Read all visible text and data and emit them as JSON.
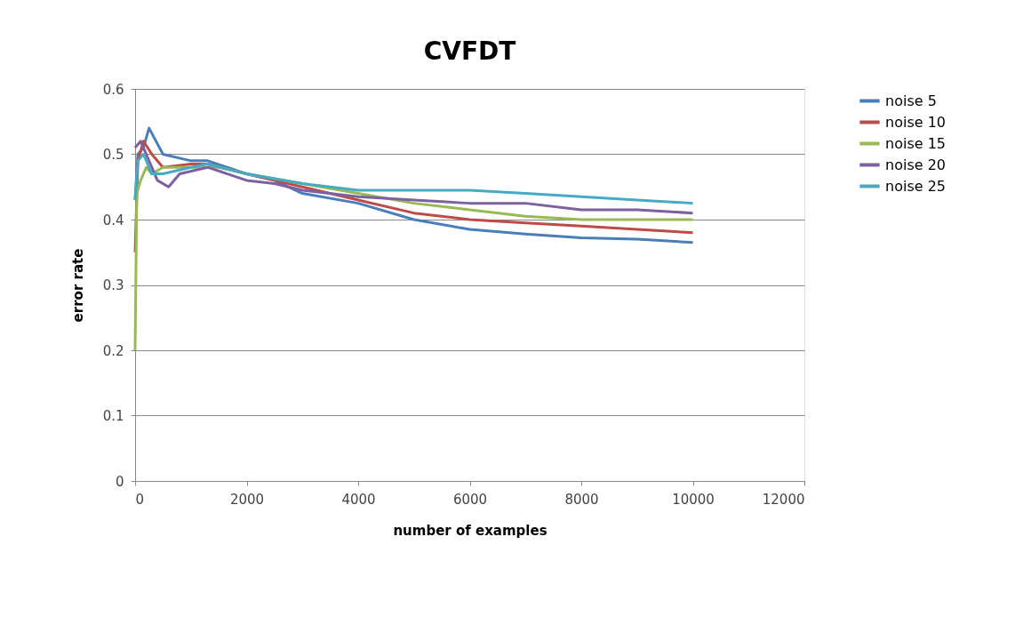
{
  "chart_data": {
    "type": "line",
    "title": "CVFDT",
    "xlabel": "number of examples",
    "ylabel": "error rate",
    "xlim": [
      0,
      12000
    ],
    "xticks": [
      0,
      2000,
      4000,
      6000,
      8000,
      10000,
      12000
    ],
    "ylim": [
      0,
      0.6
    ],
    "yticks": [
      0,
      0.1,
      0.2,
      0.3,
      0.4,
      0.5,
      0.6
    ],
    "grid": "y",
    "legend": "right",
    "marker": "none",
    "line_style": "solid",
    "series": [
      {
        "name": "noise 5",
        "color": "#4a7ebb",
        "x": [
          0,
          50,
          150,
          250,
          500,
          1000,
          1300,
          2000,
          2500,
          3000,
          4000,
          5000,
          6000,
          7000,
          8000,
          9000,
          10000
        ],
        "values": [
          0.43,
          0.5,
          0.51,
          0.54,
          0.5,
          0.49,
          0.49,
          0.47,
          0.46,
          0.44,
          0.425,
          0.4,
          0.385,
          0.378,
          0.372,
          0.37,
          0.365
        ]
      },
      {
        "name": "noise 10",
        "color": "#be4b48",
        "x": [
          0,
          50,
          150,
          300,
          500,
          1000,
          1300,
          2000,
          2500,
          3000,
          4000,
          5000,
          6000,
          7000,
          8000,
          9000,
          10000
        ],
        "values": [
          0.35,
          0.49,
          0.52,
          0.5,
          0.48,
          0.485,
          0.485,
          0.47,
          0.46,
          0.45,
          0.43,
          0.41,
          0.4,
          0.395,
          0.39,
          0.385,
          0.38
        ]
      },
      {
        "name": "noise 15",
        "color": "#98b954",
        "x": [
          0,
          30,
          100,
          200,
          300,
          500,
          1000,
          1500,
          2000,
          3000,
          4000,
          5000,
          6000,
          7000,
          8000,
          9000,
          10000
        ],
        "values": [
          0.2,
          0.44,
          0.46,
          0.48,
          0.47,
          0.48,
          0.48,
          0.48,
          0.47,
          0.455,
          0.44,
          0.425,
          0.415,
          0.405,
          0.4,
          0.4,
          0.4
        ]
      },
      {
        "name": "noise 20",
        "color": "#7d60a0",
        "x": [
          0,
          100,
          200,
          400,
          600,
          800,
          1300,
          2000,
          2500,
          3000,
          4000,
          5000,
          6000,
          7000,
          8000,
          9000,
          10000
        ],
        "values": [
          0.51,
          0.52,
          0.5,
          0.46,
          0.45,
          0.47,
          0.48,
          0.46,
          0.455,
          0.445,
          0.435,
          0.43,
          0.425,
          0.425,
          0.415,
          0.415,
          0.41
        ]
      },
      {
        "name": "noise 25",
        "color": "#46aac5",
        "x": [
          0,
          50,
          150,
          300,
          500,
          1000,
          1300,
          2000,
          3000,
          4000,
          5000,
          6000,
          7000,
          8000,
          9000,
          10000
        ],
        "values": [
          0.43,
          0.49,
          0.5,
          0.47,
          0.47,
          0.48,
          0.485,
          0.47,
          0.455,
          0.445,
          0.445,
          0.445,
          0.44,
          0.435,
          0.43,
          0.425
        ]
      }
    ]
  }
}
